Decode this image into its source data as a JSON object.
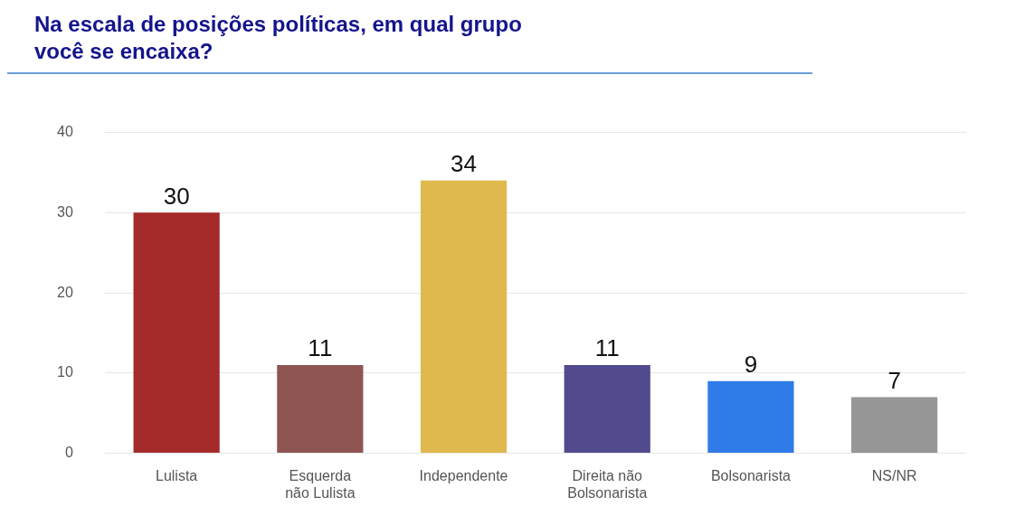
{
  "chart_data": {
    "type": "bar",
    "title": "Na escala de posições políticas, em qual grupo\nvocê se encaixa?",
    "categories": [
      "Lulista",
      "Esquerda não Lulista",
      "Independente",
      "Direita não Bolsonarista",
      "Bolsonarista",
      "NS/NR"
    ],
    "values": [
      30,
      11,
      34,
      11,
      9,
      7
    ],
    "colors": [
      "#a52a2a",
      "#8e5552",
      "#dfb94d",
      "#514a8d",
      "#2f7be8",
      "#969696"
    ],
    "ylim": [
      0,
      40
    ],
    "yticks": [
      0,
      10,
      20,
      30,
      40
    ],
    "grid": "y",
    "data_labels": true,
    "legend": false
  }
}
